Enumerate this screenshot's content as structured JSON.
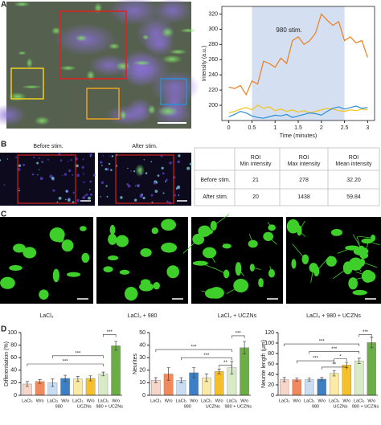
{
  "panel_labels": [
    "A",
    "B",
    "C",
    "D"
  ],
  "panel_b": {
    "images": [
      "Before stim.",
      "After stim."
    ],
    "table": {
      "header": [
        "ROI\nMin intensity",
        "ROI\nMax intensity",
        "ROI\nMean intensity"
      ],
      "rows": [
        [
          "Before stim.",
          "21",
          "278",
          "32.20"
        ],
        [
          "After stim.",
          "20",
          "1438",
          "59.84"
        ]
      ]
    }
  },
  "panel_c": {
    "images": [
      "LaCl₃",
      "LaCl₃ + 980",
      "LaCl₃ + UCZNs",
      "LaCl₃ + 980 + UCZNs"
    ]
  },
  "chart_data": [
    {
      "type": "line",
      "xlabel": "Time (minutes)",
      "ylabel": "Intensity (a.u.)",
      "annotation": "980 stim.",
      "shaded_x": [
        0.5,
        2.5
      ],
      "x": [
        0,
        0.125,
        0.25,
        0.375,
        0.5,
        0.625,
        0.75,
        0.875,
        1,
        1.125,
        1.25,
        1.375,
        1.5,
        1.625,
        1.75,
        1.875,
        2,
        2.125,
        2.25,
        2.375,
        2.5,
        2.625,
        2.75,
        2.875,
        3
      ],
      "series": [
        {
          "color": "#ef7d1a",
          "values": [
            224,
            222,
            226,
            214,
            232,
            228,
            258,
            255,
            250,
            262,
            255,
            285,
            290,
            280,
            285,
            295,
            320,
            312,
            305,
            310,
            285,
            290,
            282,
            285,
            263
          ]
        },
        {
          "color": "#f2c318",
          "values": [
            190,
            192,
            195,
            197,
            194,
            200,
            196,
            198,
            193,
            195,
            192,
            194,
            191,
            193,
            190,
            192,
            194,
            196,
            195,
            193,
            192,
            194,
            193,
            195,
            194
          ]
        },
        {
          "color": "#2b8fd6",
          "values": [
            185,
            188,
            192,
            190,
            186,
            184,
            183,
            185,
            187,
            186,
            188,
            184,
            186,
            188,
            190,
            189,
            187,
            192,
            196,
            198,
            195,
            197,
            199,
            196,
            197
          ]
        }
      ],
      "xlim": [
        -0.15,
        3.15
      ],
      "xticks": [
        0,
        0.5,
        1,
        1.5,
        2,
        2.5,
        3
      ],
      "ylim": [
        180,
        330
      ],
      "yticks": [
        200,
        220,
        240,
        260,
        280,
        300,
        320
      ]
    },
    {
      "type": "bar",
      "ylabel": "Differentiation (%)",
      "categories": [
        "LaCl₃",
        "W/o",
        "LaCl₃",
        "W/o",
        "LaCl₃",
        "W/o",
        "LaCl₃",
        "W/o"
      ],
      "groups": [
        null,
        "980",
        "UCZNs",
        "980 + UCZNs"
      ],
      "values": [
        18,
        22,
        20,
        27,
        26,
        27,
        34,
        79
      ],
      "errors": [
        4,
        3,
        6,
        5,
        4,
        4,
        3,
        7
      ],
      "colors": [
        "#f6d6c8",
        "#f08a5d",
        "#c9ddf2",
        "#3d7fc4",
        "#fbe9a6",
        "#f5c02a",
        "#d7ebc4",
        "#6aae45"
      ],
      "annotations": [
        "***",
        "***",
        "***"
      ],
      "ylim": [
        0,
        100
      ],
      "yticks": [
        0,
        20,
        40,
        60,
        80,
        100
      ]
    },
    {
      "type": "bar",
      "ylabel": "Neurites",
      "categories": [
        "LaCl₃",
        "W/o",
        "LaCl₃",
        "W/o",
        "LaCl₃",
        "W/o",
        "LaCl₃",
        "W/o"
      ],
      "groups": [
        null,
        "980",
        "UCZNs",
        "980 + UCZNs"
      ],
      "values": [
        12,
        17,
        12,
        18,
        14,
        19,
        22,
        38
      ],
      "errors": [
        2,
        5,
        2,
        4,
        3,
        2,
        5,
        5
      ],
      "colors": [
        "#f6d6c8",
        "#f08a5d",
        "#c9ddf2",
        "#3d7fc4",
        "#fbe9a6",
        "#f5c02a",
        "#d7ebc4",
        "#6aae45"
      ],
      "annotations": [
        "***",
        "***",
        "**",
        "***"
      ],
      "ylim": [
        0,
        50
      ],
      "yticks": [
        0,
        10,
        20,
        30,
        40,
        50
      ]
    },
    {
      "type": "bar",
      "ylabel": "Neurite length (μm)",
      "categories": [
        "LaCl₃",
        "W/o",
        "LaCl₃",
        "W/o",
        "LaCl₃",
        "W/o",
        "LaCl₃",
        "W/o"
      ],
      "groups": [
        null,
        "980",
        "UCZNs",
        "980 + UCZNs"
      ],
      "values": [
        30,
        30,
        30,
        31,
        42,
        58,
        66,
        101
      ],
      "errors": [
        4,
        3,
        3,
        3,
        5,
        5,
        5,
        10
      ],
      "colors": [
        "#f6d6c8",
        "#f08a5d",
        "#c9ddf2",
        "#3d7fc4",
        "#fbe9a6",
        "#f5c02a",
        "#d7ebc4",
        "#6aae45"
      ],
      "annotations": [
        "***",
        "***",
        "***",
        "**",
        "*",
        "***"
      ],
      "ylim": [
        0,
        120
      ],
      "yticks": [
        0,
        20,
        40,
        60,
        80,
        100,
        120
      ]
    }
  ]
}
